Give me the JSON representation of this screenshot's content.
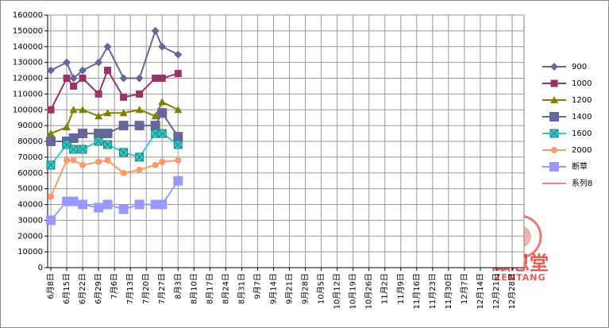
{
  "chart_data": {
    "type": "line",
    "x": [
      "6月8日",
      "6月15日",
      "6月18日",
      "6月22日",
      "6月29日",
      "7月3日",
      "7月10日",
      "7月17日",
      "7月24日",
      "7月27日",
      "8月3日"
    ],
    "xticks": [
      "6月8日",
      "6月15日",
      "6月22日",
      "6月29日",
      "7月6日",
      "7月13日",
      "7月20日",
      "7月27日",
      "8月3日",
      "8月10日",
      "8月17日",
      "8月24日",
      "8月31日",
      "9月7日",
      "9月14日",
      "9月21日",
      "9月28日",
      "10月5日",
      "10月12日",
      "10月19日",
      "10月26日",
      "11月2日",
      "11月9日",
      "11月16日",
      "11月23日",
      "11月30日",
      "12月7日",
      "12月14日",
      "12月21日",
      "12月28日"
    ],
    "ylim": [
      0,
      160000
    ],
    "yticks": [
      0,
      10000,
      20000,
      30000,
      40000,
      50000,
      60000,
      70000,
      80000,
      90000,
      100000,
      110000,
      120000,
      130000,
      140000,
      150000,
      160000
    ],
    "grid": true,
    "legend": "right",
    "series": [
      {
        "name": "900",
        "color": "#666699",
        "marker": "diamond",
        "values": [
          125000,
          130000,
          120000,
          125000,
          130000,
          140000,
          120000,
          120000,
          150000,
          140000,
          135000
        ]
      },
      {
        "name": "1000",
        "color": "#993366",
        "marker": "square",
        "values": [
          100000,
          120000,
          115000,
          120000,
          110000,
          125000,
          108000,
          110000,
          120000,
          120000,
          123000
        ]
      },
      {
        "name": "1200",
        "color": "#808000",
        "marker": "triangle",
        "values": [
          85000,
          89000,
          100000,
          100000,
          96000,
          98000,
          98000,
          100000,
          96000,
          105000,
          100000
        ]
      },
      {
        "name": "1400",
        "color": "#666699",
        "marker": "big-square",
        "values": [
          80000,
          80000,
          82000,
          85000,
          85000,
          85000,
          90000,
          90000,
          90000,
          98000,
          83000
        ]
      },
      {
        "name": "1600",
        "color": "#33cccc",
        "marker": "x-square",
        "values": [
          65000,
          78000,
          75000,
          75000,
          80000,
          78000,
          73000,
          70000,
          85000,
          85000,
          78000
        ]
      },
      {
        "name": "2000",
        "color": "#ff9966",
        "marker": "circle",
        "values": [
          45000,
          68000,
          68000,
          65000,
          67000,
          68000,
          60000,
          62000,
          65000,
          67000,
          68000
        ]
      },
      {
        "name": "断草",
        "color": "#9999ff",
        "marker": "big-square",
        "values": [
          30000,
          42000,
          42000,
          40000,
          38000,
          40000,
          37000,
          40000,
          40000,
          40000,
          55000
        ]
      },
      {
        "name": "系列8",
        "color": "#ff8080",
        "marker": "none",
        "values": [
          null,
          null,
          null,
          null,
          null,
          null,
          null,
          null,
          null,
          null,
          null
        ]
      }
    ]
  },
  "watermark": {
    "text": "滋恩堂",
    "subtext": "ZENTANG"
  }
}
